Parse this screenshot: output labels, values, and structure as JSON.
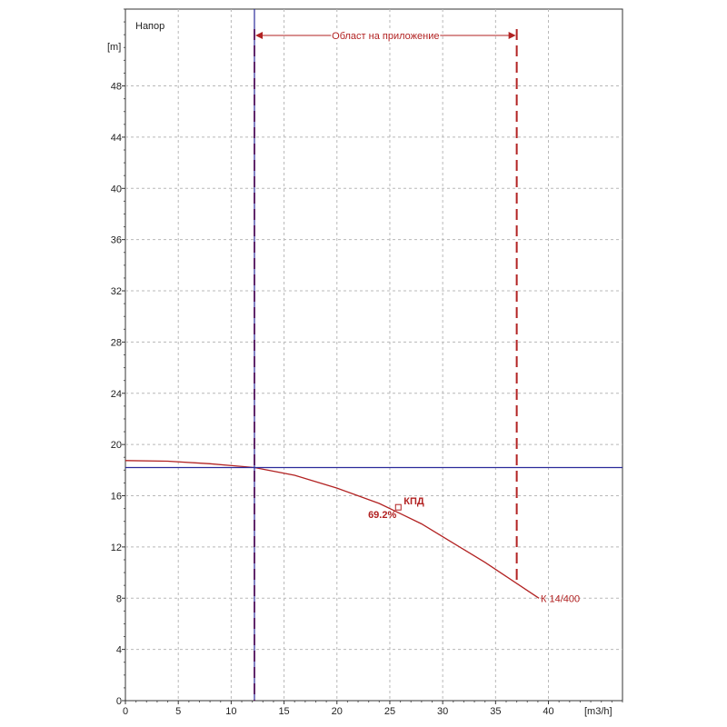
{
  "chart_data": {
    "type": "line",
    "title": "Напор",
    "y_unit": "[m]",
    "x_unit": "[m3/h]",
    "xlim": [
      0,
      47
    ],
    "ylim": [
      0,
      54
    ],
    "x_ticks": [
      0,
      5,
      10,
      15,
      20,
      25,
      30,
      35,
      40
    ],
    "y_ticks": [
      0,
      4,
      8,
      12,
      16,
      20,
      24,
      28,
      32,
      36,
      40,
      44,
      48
    ],
    "grid": true,
    "series": [
      {
        "name": "К 14/400",
        "color": "#b22222",
        "x": [
          0,
          4,
          8,
          12.2,
          16,
          20,
          24,
          26,
          28,
          30,
          32,
          34,
          36,
          38,
          39.1
        ],
        "y": [
          18.75,
          18.7,
          18.5,
          18.2,
          17.6,
          16.6,
          15.4,
          14.6,
          13.8,
          12.8,
          11.8,
          10.8,
          9.7,
          8.6,
          8.0
        ]
      }
    ],
    "operating_point": {
      "x": 12.2,
      "y": 18.2,
      "color": "#2a2a9a"
    },
    "application_range": {
      "label": "Област на приложение",
      "x_start": 12.2,
      "x_end": 37.0,
      "y_end": 9.3,
      "color": "#b22222"
    },
    "efficiency_marker": {
      "label": "КПД",
      "value": "69.2%",
      "x": 25.8,
      "y": 15.1
    }
  }
}
